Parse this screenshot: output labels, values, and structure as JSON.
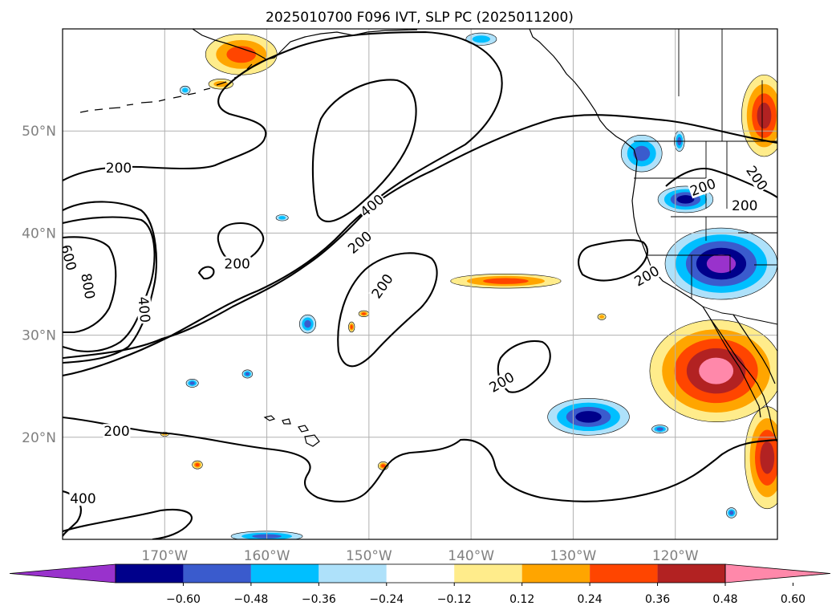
{
  "title": "2025010700 F096 IVT, SLP PC (2025011200)",
  "map": {
    "lon_range": [
      -180,
      -110
    ],
    "lat_range": [
      10,
      60
    ],
    "lon_ticks": [
      {
        "value": -170,
        "label": "170°W"
      },
      {
        "value": -160,
        "label": "160°W"
      },
      {
        "value": -150,
        "label": "150°W"
      },
      {
        "value": -140,
        "label": "140°W"
      },
      {
        "value": -130,
        "label": "130°W"
      },
      {
        "value": -120,
        "label": "120°W"
      }
    ],
    "lat_ticks": [
      {
        "value": 20,
        "label": "20°N"
      },
      {
        "value": 30,
        "label": "30°N"
      },
      {
        "value": 40,
        "label": "40°N"
      },
      {
        "value": 50,
        "label": "50°N"
      }
    ],
    "gridlines": true
  },
  "contour_labels": [
    {
      "lon": -174.5,
      "lat": 46.4,
      "text": "200",
      "rot": 0
    },
    {
      "lon": -162.9,
      "lat": 37.0,
      "text": "200",
      "rot": 0
    },
    {
      "lon": -179.4,
      "lat": 37.6,
      "text": "600",
      "rot": 75
    },
    {
      "lon": -177.5,
      "lat": 34.8,
      "text": "800",
      "rot": 80
    },
    {
      "lon": -178.0,
      "lat": 14.0,
      "text": "400",
      "rot": 0
    },
    {
      "lon": -174.7,
      "lat": 20.6,
      "text": "200",
      "rot": 0
    },
    {
      "lon": -172.0,
      "lat": 32.5,
      "text": "400",
      "rot": 85
    },
    {
      "lon": -149.7,
      "lat": 42.7,
      "text": "400",
      "rot": -40
    },
    {
      "lon": -150.9,
      "lat": 39.1,
      "text": "200",
      "rot": -40
    },
    {
      "lon": -148.7,
      "lat": 34.8,
      "text": "200",
      "rot": -55
    },
    {
      "lon": -122.8,
      "lat": 35.8,
      "text": "200",
      "rot": -30
    },
    {
      "lon": -137.0,
      "lat": 25.4,
      "text": "200",
      "rot": -30
    },
    {
      "lon": -117.3,
      "lat": 44.5,
      "text": "200",
      "rot": -20
    },
    {
      "lon": -113.2,
      "lat": 42.7,
      "text": "200",
      "rot": 0
    },
    {
      "lon": -112.0,
      "lat": 45.4,
      "text": "200",
      "rot": 55
    }
  ],
  "ivt_anomaly_patches": [
    {
      "id": "mid-pacific-pos-band",
      "shades": [
        0,
        2,
        3
      ],
      "lon": -136.6,
      "lat": 35.3,
      "rx": 5.4,
      "ry": 0.7
    },
    {
      "id": "aleutian-pos",
      "shades": [
        0,
        2,
        3
      ],
      "lon": -162.5,
      "lat": 57.5,
      "rx": 3.5,
      "ry": 2.0
    },
    {
      "id": "aleutian-pos-2",
      "shades": [
        0,
        2
      ],
      "lon": -164.5,
      "lat": 54.6,
      "rx": 1.2,
      "ry": 0.5
    },
    {
      "id": "bc-pos",
      "shades": [
        0,
        2,
        3,
        4
      ],
      "lon": -111.3,
      "lat": 51.5,
      "rx": 2.2,
      "ry": 4.0
    },
    {
      "id": "california-pos",
      "shades": [
        0,
        2,
        3,
        4,
        5
      ],
      "lon": -116.0,
      "lat": 26.5,
      "rx": 6.5,
      "ry": 5.0
    },
    {
      "id": "mexico-pos",
      "shades": [
        0,
        2,
        3,
        4
      ],
      "lon": -111.0,
      "lat": 18.0,
      "rx": 2.2,
      "ry": 5.0
    },
    {
      "id": "small-pos-a",
      "shades": [
        0,
        2,
        3
      ],
      "lon": -148.6,
      "lat": 17.2,
      "rx": 0.5,
      "ry": 0.4
    },
    {
      "id": "small-pos-b",
      "shades": [
        0,
        2,
        3
      ],
      "lon": -166.8,
      "lat": 17.3,
      "rx": 0.5,
      "ry": 0.4
    },
    {
      "id": "small-pos-c",
      "shades": [
        0,
        2,
        3
      ],
      "lon": -150.5,
      "lat": 32.1,
      "rx": 0.5,
      "ry": 0.3
    },
    {
      "id": "small-pos-d",
      "shades": [
        0,
        2,
        3
      ],
      "lon": -151.7,
      "lat": 30.8,
      "rx": 0.3,
      "ry": 0.5
    },
    {
      "id": "small-pos-e",
      "shades": [
        0,
        2
      ],
      "lon": -175.1,
      "lat": 20.3,
      "rx": 0.4,
      "ry": 0.3
    },
    {
      "id": "small-pos-f",
      "shades": [
        0,
        2
      ],
      "lon": -170.0,
      "lat": 20.3,
      "rx": 0.4,
      "ry": 0.2
    },
    {
      "id": "small-pos-g",
      "shades": [
        0,
        2
      ],
      "lon": -127.2,
      "lat": 31.8,
      "rx": 0.4,
      "ry": 0.3
    },
    {
      "id": "oregon-neg",
      "shades": [
        0,
        1,
        2,
        3,
        4
      ],
      "lon": -115.5,
      "lat": 37.0,
      "rx": 5.5,
      "ry": 3.5
    },
    {
      "id": "subtropical-neg",
      "shades": [
        0,
        1,
        2,
        3
      ],
      "lon": -128.5,
      "lat": 22.0,
      "rx": 4.0,
      "ry": 1.8
    },
    {
      "id": "washington-neg",
      "shades": [
        0,
        1,
        2,
        3
      ],
      "lon": -119.0,
      "lat": 43.3,
      "rx": 2.7,
      "ry": 1.3
    },
    {
      "id": "bc-coast-neg",
      "shades": [
        0,
        1,
        2
      ],
      "lon": -123.3,
      "lat": 47.8,
      "rx": 2.0,
      "ry": 1.8
    },
    {
      "id": "hawaii-neg-a",
      "shades": [
        0,
        1,
        2
      ],
      "lon": -160.0,
      "lat": 10.3,
      "rx": 3.5,
      "ry": 0.5
    },
    {
      "id": "hawaii-neg-b",
      "shades": [
        0,
        1,
        2
      ],
      "lon": -156.0,
      "lat": 31.1,
      "rx": 0.8,
      "ry": 0.9
    },
    {
      "id": "small-neg-a",
      "shades": [
        0,
        1,
        2
      ],
      "lon": -167.3,
      "lat": 25.3,
      "rx": 0.6,
      "ry": 0.4
    },
    {
      "id": "small-neg-b",
      "shades": [
        0,
        1,
        2
      ],
      "lon": -161.9,
      "lat": 26.2,
      "rx": 0.5,
      "ry": 0.4
    },
    {
      "id": "small-neg-c",
      "shades": [
        0,
        1
      ],
      "lon": -158.5,
      "lat": 41.5,
      "rx": 0.6,
      "ry": 0.3
    },
    {
      "id": "small-neg-d",
      "shades": [
        0,
        1,
        2
      ],
      "lon": -119.6,
      "lat": 49.0,
      "rx": 0.5,
      "ry": 1.0
    },
    {
      "id": "small-neg-e",
      "shades": [
        0,
        1,
        2
      ],
      "lon": -121.5,
      "lat": 20.8,
      "rx": 0.8,
      "ry": 0.4
    },
    {
      "id": "small-neg-f",
      "shades": [
        0,
        1,
        2
      ],
      "lon": -114.5,
      "lat": 12.6,
      "rx": 0.5,
      "ry": 0.5
    },
    {
      "id": "small-neg-g",
      "shades": [
        0,
        1
      ],
      "lon": -168.0,
      "lat": 54.0,
      "rx": 0.5,
      "ry": 0.4
    },
    {
      "id": "small-neg-h",
      "shades": [
        0,
        1
      ],
      "lon": -139.0,
      "lat": 59.0,
      "rx": 1.5,
      "ry": 0.6
    }
  ],
  "colorbar": {
    "colors": [
      "#9932cc",
      "#00008b",
      "#3a5bcd",
      "#00bfff",
      "#aee1fa",
      "#ffffff",
      "#ffec8b",
      "#ffa500",
      "#ff4500",
      "#b22222",
      "#ff88aa"
    ],
    "tick_labels": [
      "−0.60",
      "−0.48",
      "−0.36",
      "−0.24",
      "−0.12",
      "0.12",
      "0.24",
      "0.36",
      "0.48",
      "0.60"
    ],
    "extend": "both"
  }
}
